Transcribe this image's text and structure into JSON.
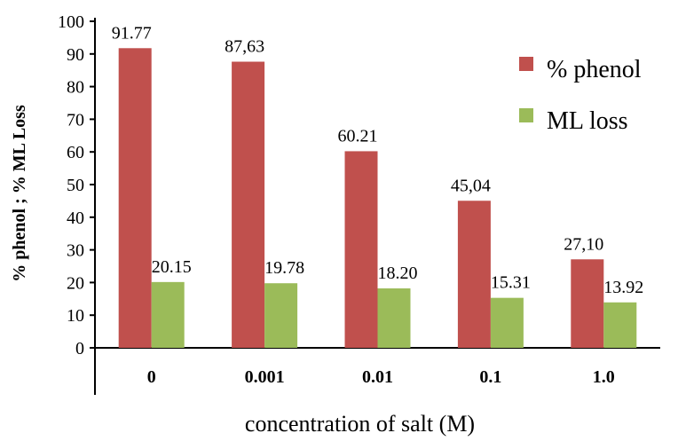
{
  "chart_data": {
    "type": "bar",
    "title": "",
    "xlabel": "concentration of salt (M)",
    "ylabel": "% phenol ; % ML Loss",
    "categories": [
      "0",
      "0.001",
      "0.01",
      "0.1",
      "1.0"
    ],
    "ylim": [
      0,
      100
    ],
    "yticks": [
      0,
      10,
      20,
      30,
      40,
      50,
      60,
      70,
      80,
      90,
      100
    ],
    "grid": false,
    "legend_position": "top-right",
    "series": [
      {
        "name": "% phenol",
        "color": "#c0504d",
        "values": [
          91.77,
          87.63,
          60.21,
          45.04,
          27.1
        ],
        "labels": [
          "91.77",
          "87,63",
          "60.21",
          "45,04",
          "27,10"
        ]
      },
      {
        "name": "ML loss",
        "color": "#9bbb59",
        "values": [
          20.15,
          19.78,
          18.2,
          15.31,
          13.92
        ],
        "labels": [
          "20.15",
          "19.78",
          "18.20",
          "15.31",
          "13.92"
        ]
      }
    ]
  }
}
